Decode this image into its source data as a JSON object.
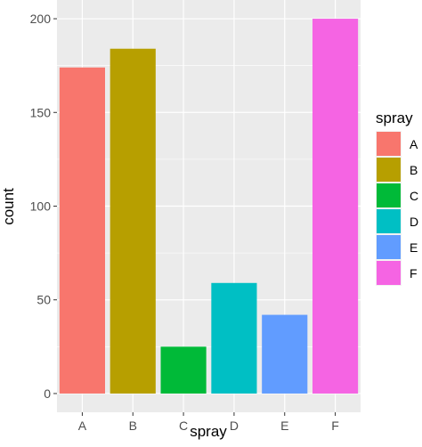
{
  "chart_data": {
    "type": "bar",
    "categories": [
      "A",
      "B",
      "C",
      "D",
      "E",
      "F"
    ],
    "values": [
      174,
      184,
      25,
      59,
      42,
      200
    ],
    "colors": [
      "#F8766D",
      "#B79F00",
      "#00BA38",
      "#00BFC4",
      "#619CFF",
      "#F564E3"
    ],
    "xlabel": "spray",
    "ylabel": "count",
    "ylim": [
      -10,
      210
    ],
    "yticks": [
      0,
      50,
      100,
      150,
      200
    ],
    "grid": true,
    "legend": {
      "title": "spray",
      "position": "right",
      "entries": [
        "A",
        "B",
        "C",
        "D",
        "E",
        "F"
      ]
    }
  }
}
